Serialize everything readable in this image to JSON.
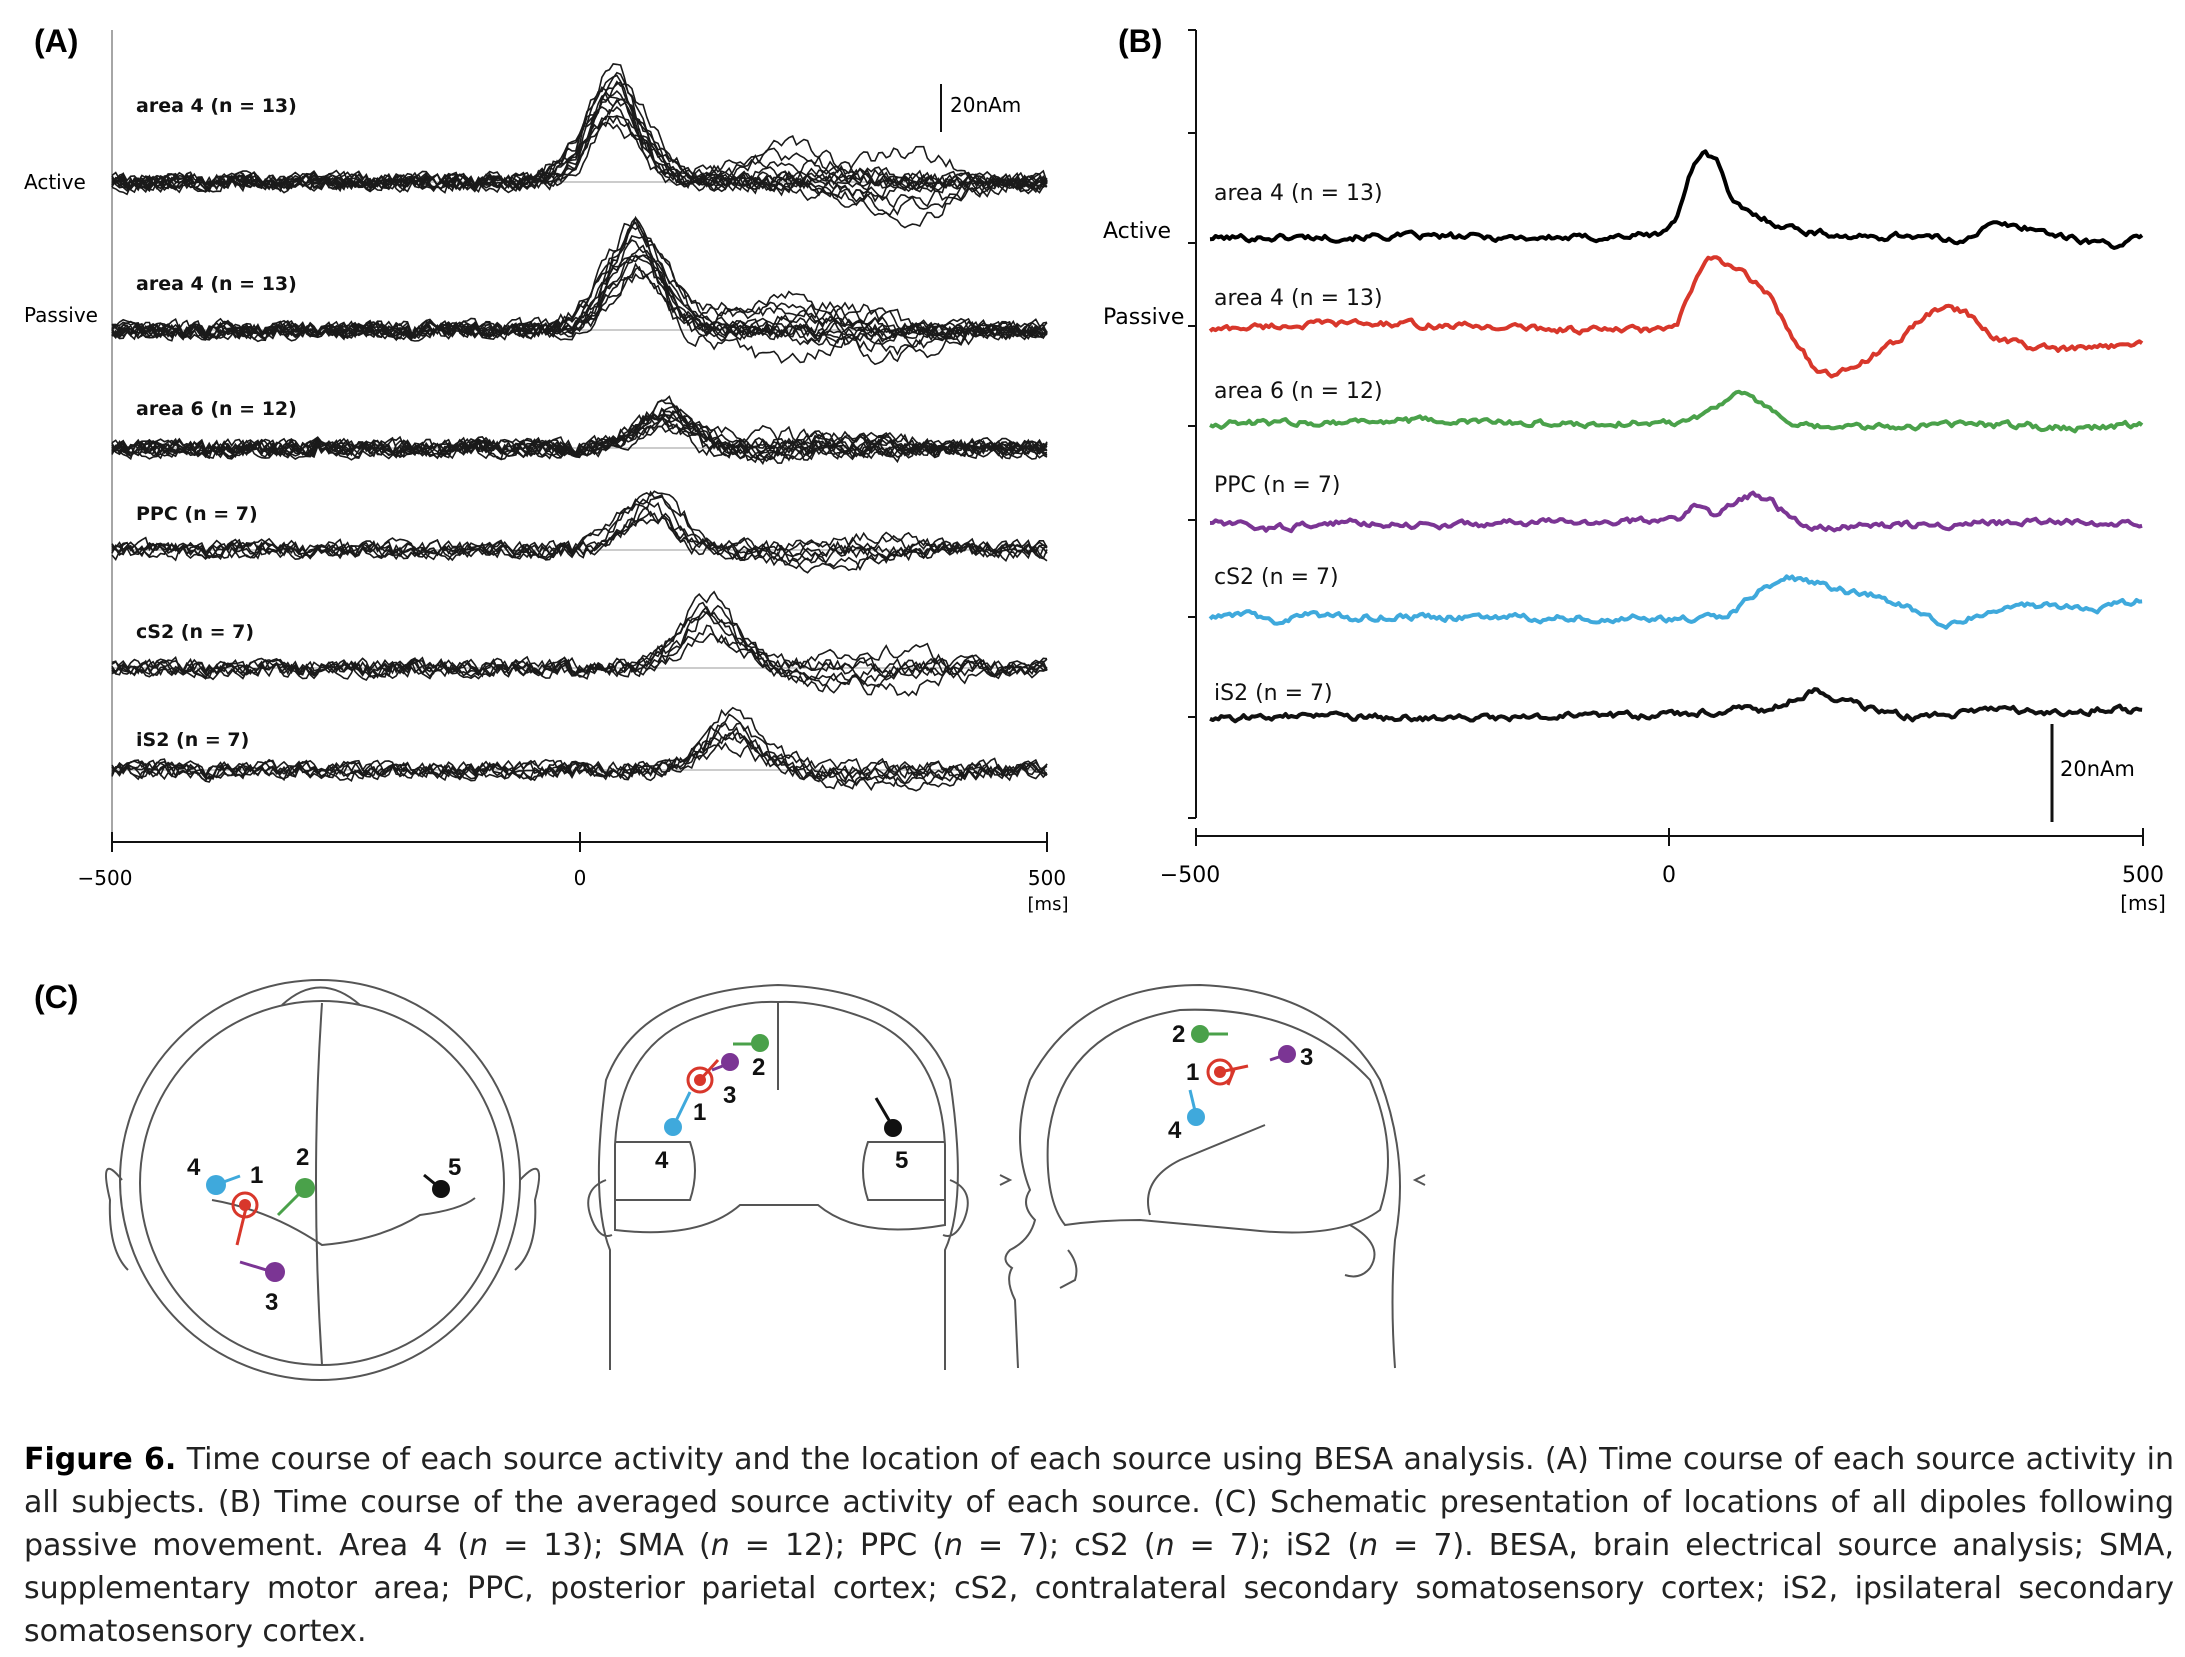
{
  "figure": {
    "panels": {
      "a_label": "(A)",
      "b_label": "(B)",
      "c_label": "(C)"
    },
    "scalebar_a": "20nAm",
    "scalebar_b": "20nAm",
    "ms_unit": "[ms]",
    "condition_labels": {
      "active": "Active",
      "passive": "Passive"
    }
  },
  "chart_data": [
    {
      "type": "line",
      "panel": "A",
      "x_ticks": [
        "−500",
        "0",
        "500"
      ],
      "xlim": [
        -500,
        500
      ],
      "x_unit": "[ms]",
      "rows": [
        {
          "label": "area 4 (n = 13)",
          "condition": "Active",
          "n": 13,
          "peak_ms": 30,
          "peak_nAm": 25
        },
        {
          "label": "area 4 (n = 13)",
          "condition": "Passive",
          "n": 13,
          "peak_ms": 50,
          "peak_nAm": 25
        },
        {
          "label": "area 6 (n = 12)",
          "n": 12,
          "peak_ms": 80,
          "peak_nAm": 10
        },
        {
          "label": "PPC (n = 7)",
          "n": 7,
          "peak_ms": 60,
          "peak_nAm": 14
        },
        {
          "label": "cS2 (n = 7)",
          "n": 7,
          "peak_ms": 120,
          "peak_nAm": 16
        },
        {
          "label": "iS2 (n = 7)",
          "n": 7,
          "peak_ms": 140,
          "peak_nAm": 12
        }
      ]
    },
    {
      "type": "line",
      "panel": "B",
      "x_ticks": [
        "−500",
        "0",
        "500"
      ],
      "xlim": [
        -500,
        500
      ],
      "x_unit": "[ms]",
      "series": [
        {
          "name": "area 4 (n = 13)",
          "condition": "Active",
          "color": "#000000",
          "points": [
            [
              -500,
              0
            ],
            [
              -300,
              0.5
            ],
            [
              -100,
              0
            ],
            [
              -20,
              1
            ],
            [
              0,
              5
            ],
            [
              15,
              20
            ],
            [
              30,
              26
            ],
            [
              45,
              22
            ],
            [
              60,
              10
            ],
            [
              80,
              7
            ],
            [
              110,
              4
            ],
            [
              140,
              2
            ],
            [
              200,
              0
            ],
            [
              250,
              1
            ],
            [
              300,
              -1
            ],
            [
              340,
              4
            ],
            [
              380,
              3
            ],
            [
              420,
              0
            ],
            [
              470,
              -2
            ],
            [
              500,
              0
            ]
          ]
        },
        {
          "name": "area 4 (n = 13)",
          "condition": "Passive",
          "color": "#d8372b",
          "points": [
            [
              -500,
              0
            ],
            [
              -450,
              1
            ],
            [
              -350,
              2
            ],
            [
              -200,
              1
            ],
            [
              -100,
              0
            ],
            [
              -20,
              0
            ],
            [
              0,
              1
            ],
            [
              20,
              14
            ],
            [
              35,
              22
            ],
            [
              50,
              19
            ],
            [
              65,
              18
            ],
            [
              80,
              15
            ],
            [
              100,
              10
            ],
            [
              125,
              -2
            ],
            [
              150,
              -12
            ],
            [
              170,
              -14
            ],
            [
              200,
              -9
            ],
            [
              240,
              -3
            ],
            [
              260,
              3
            ],
            [
              290,
              7
            ],
            [
              310,
              5
            ],
            [
              340,
              -2
            ],
            [
              380,
              -5
            ],
            [
              420,
              -6
            ],
            [
              460,
              -5
            ],
            [
              500,
              -3
            ]
          ]
        },
        {
          "name": "area 6 (n = 12)",
          "color": "#4aa14a",
          "points": [
            [
              -500,
              0
            ],
            [
              -300,
              1
            ],
            [
              -100,
              0
            ],
            [
              0,
              0.5
            ],
            [
              30,
              3
            ],
            [
              60,
              9
            ],
            [
              80,
              8
            ],
            [
              100,
              4
            ],
            [
              130,
              -1
            ],
            [
              200,
              -1
            ],
            [
              300,
              0
            ],
            [
              380,
              -0.5
            ],
            [
              440,
              -1
            ],
            [
              500,
              0
            ]
          ]
        },
        {
          "name": "PPC (n = 7)",
          "color": "#7b3594",
          "points": [
            [
              -500,
              0
            ],
            [
              -440,
              -2
            ],
            [
              -350,
              0
            ],
            [
              -250,
              -1
            ],
            [
              -150,
              0
            ],
            [
              -50,
              0
            ],
            [
              0,
              1
            ],
            [
              20,
              5
            ],
            [
              40,
              2
            ],
            [
              60,
              6
            ],
            [
              80,
              8
            ],
            [
              100,
              6
            ],
            [
              120,
              2
            ],
            [
              140,
              -2
            ],
            [
              200,
              -1
            ],
            [
              300,
              -0.5
            ],
            [
              400,
              0
            ],
            [
              500,
              0
            ]
          ]
        },
        {
          "name": "cS2 (n = 7)",
          "color": "#3fa9dc",
          "points": [
            [
              -500,
              0
            ],
            [
              -460,
              1
            ],
            [
              -430,
              -1
            ],
            [
              -400,
              1
            ],
            [
              -350,
              0
            ],
            [
              -300,
              0.5
            ],
            [
              -200,
              0
            ],
            [
              -50,
              0
            ],
            [
              0,
              -0.5
            ],
            [
              50,
              0
            ],
            [
              70,
              4
            ],
            [
              90,
              8
            ],
            [
              120,
              12
            ],
            [
              150,
              10
            ],
            [
              180,
              8
            ],
            [
              220,
              6
            ],
            [
              260,
              2
            ],
            [
              290,
              -2
            ],
            [
              310,
              0
            ],
            [
              350,
              3
            ],
            [
              400,
              4
            ],
            [
              450,
              3
            ],
            [
              500,
              5
            ]
          ]
        },
        {
          "name": "iS2 (n = 7)",
          "color": "#111111",
          "points": [
            [
              -500,
              0
            ],
            [
              -400,
              0.5
            ],
            [
              -300,
              0
            ],
            [
              -200,
              0
            ],
            [
              -100,
              0.5
            ],
            [
              0,
              1
            ],
            [
              40,
              2
            ],
            [
              60,
              3
            ],
            [
              90,
              2
            ],
            [
              120,
              5
            ],
            [
              150,
              8
            ],
            [
              180,
              5
            ],
            [
              220,
              2
            ],
            [
              260,
              0
            ],
            [
              300,
              1
            ],
            [
              340,
              3
            ],
            [
              380,
              2
            ],
            [
              420,
              1
            ],
            [
              460,
              3
            ],
            [
              500,
              2
            ]
          ]
        }
      ]
    }
  ],
  "head_diagrams": {
    "top_view": {
      "labels": [
        "1",
        "2",
        "3",
        "4",
        "5"
      ]
    },
    "coronal_view": {
      "labels": [
        "1",
        "2",
        "3",
        "4",
        "5"
      ]
    },
    "sagittal_view": {
      "labels": [
        "1",
        "2",
        "3",
        "4"
      ]
    },
    "dipole_colors": {
      "1": "#d8372b",
      "2": "#4aa14a",
      "3": "#7b3594",
      "4": "#3fa9dc",
      "5": "#111111"
    }
  },
  "caption": {
    "figure_label": "Figure 6.",
    "text_1": " Time course of each source activity and the location of each source using BESA analysis. (A) Time course of each source activity in all subjects. (B) Time course of the averaged source activity of each source. (C) Schematic presentation of locations of all dipoles following passive movement. Area 4 (",
    "n_1": "n",
    "text_2": " = 13); SMA (",
    "n_2": "n",
    "text_3": " = 12); PPC (",
    "n_3": "n",
    "text_4": " = 7); cS2 (",
    "n_4": "n",
    "text_5": " = 7); iS2 (",
    "n_5": "n",
    "text_6": " = 7). BESA, brain electrical source analysis; SMA, supplementary motor area; PPC, posterior parietal cortex; cS2, contralateral secondary somatosensory cortex; iS2, ipsilateral secondary somatosensory cortex."
  }
}
